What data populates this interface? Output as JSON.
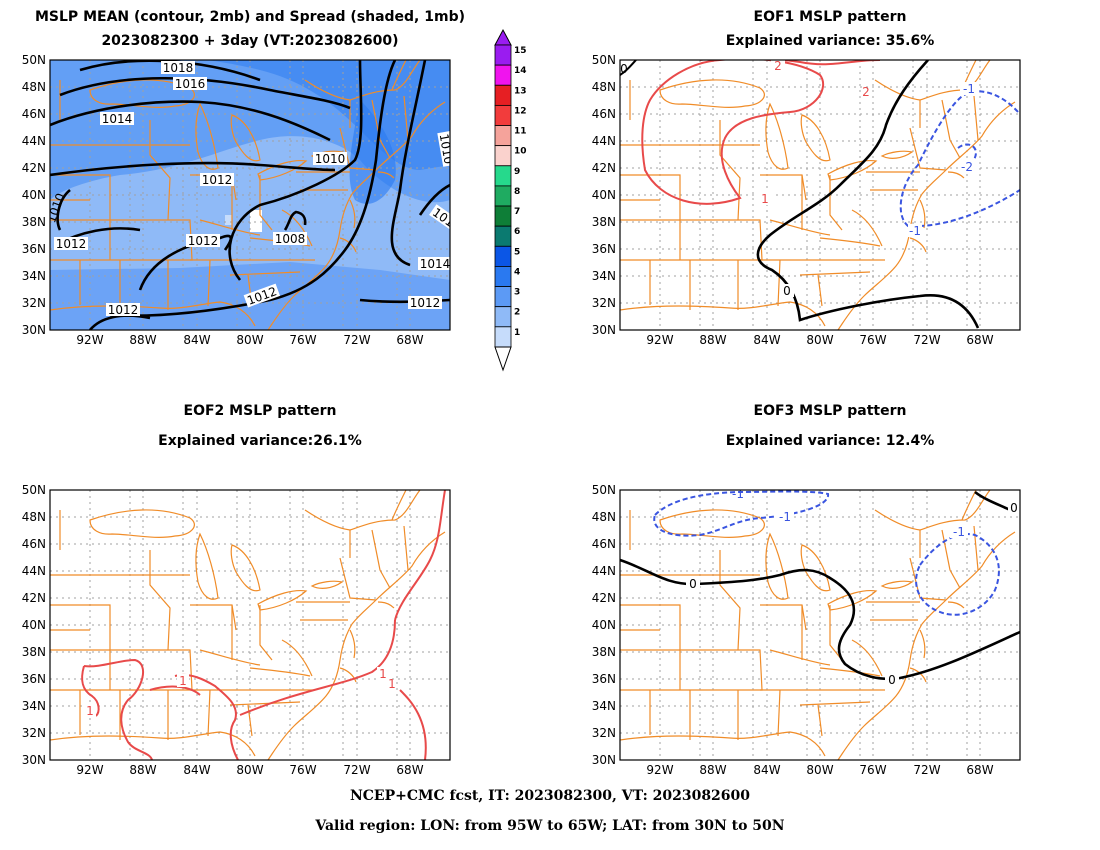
{
  "panels": [
    {
      "title1": "MSLP MEAN (contour, 2mb) and Spread (shaded, 1mb)",
      "title2": "2023082300 + 3day (VT:2023082600)"
    },
    {
      "title1": "EOF1 MSLP pattern",
      "title2": "Explained variance: 35.6%"
    },
    {
      "title1": "EOF2 MSLP pattern",
      "title2": "Explained variance:26.1%"
    },
    {
      "title1": "EOF3 MSLP pattern",
      "title2": "Explained variance: 12.4%"
    }
  ],
  "axes": {
    "lat_labels": [
      "50N",
      "48N",
      "46N",
      "44N",
      "42N",
      "40N",
      "38N",
      "36N",
      "34N",
      "32N",
      "30N"
    ],
    "lon_labels": [
      "92W",
      "88W",
      "84W",
      "80W",
      "76W",
      "72W",
      "68W"
    ]
  },
  "colorbar": {
    "labels": [
      "15",
      "14",
      "13",
      "12",
      "11",
      "10",
      "9",
      "8",
      "7",
      "6",
      "5",
      "4",
      "3",
      "2",
      "1"
    ],
    "colors": [
      "#9a1cf0",
      "#f014ee",
      "#e61f23",
      "#f23c3c",
      "#f5a39b",
      "#fad2cd",
      "#26d98c",
      "#1fab61",
      "#0e7e37",
      "#0b7a70",
      "#0b56e6",
      "#2a79f0",
      "#5c9af5",
      "#8fbaf7",
      "#c6dcfb"
    ]
  },
  "mean_contour_labels": [
    "1018",
    "1016",
    "1014",
    "1012",
    "1012",
    "1012",
    "1010",
    "1008",
    "1012",
    "1012",
    "1014",
    "1012",
    "1010",
    "1010",
    "1010"
  ],
  "eof1_labels": [
    "2",
    "1",
    "0",
    "0",
    "-1",
    "-2",
    "-1",
    "2"
  ],
  "eof2_labels": [
    "1",
    "1",
    "1",
    "1"
  ],
  "eof3_labels": [
    "-1",
    "-1",
    "-1",
    "0",
    "0",
    "0"
  ],
  "footer": {
    "line1": "NCEP+CMC fcst, IT: 2023082300, VT: 2023082600",
    "line2": "Valid region: LON: from 95W to 65W; LAT: from 30N to 50N"
  }
}
